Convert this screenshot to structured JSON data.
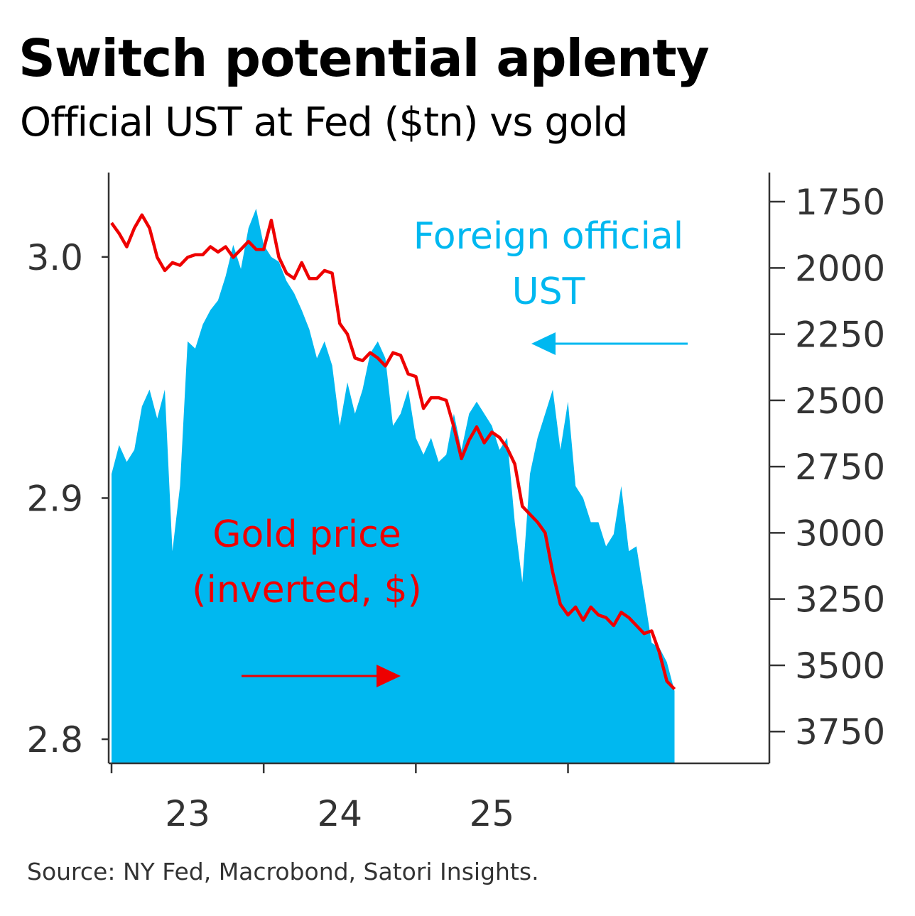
{
  "chart_data": {
    "type": "area+line",
    "title": "Switch potential aplenty",
    "subtitle": "Official UST at Fed ($tn) vs gold",
    "source": "Source: NY Fed, Macrobond, Satori Insights.",
    "x_axis": {
      "ticks": [
        "23",
        "24",
        "25"
      ],
      "range": [
        2022.0,
        2025.95
      ]
    },
    "y_left": {
      "ticks": [
        "3.0",
        "2.9",
        "2.8"
      ],
      "tick_values": [
        3.0,
        2.9,
        2.8
      ],
      "range": [
        2.79,
        3.035
      ]
    },
    "y_right": {
      "inverted": true,
      "ticks": [
        "1750",
        "2000",
        "2250",
        "2500",
        "2750",
        "3000",
        "3250",
        "3500",
        "3750"
      ],
      "tick_values": [
        1750,
        2000,
        2250,
        2500,
        2750,
        3000,
        3250,
        3500,
        3750
      ],
      "range": [
        1640,
        3870
      ]
    },
    "annotations": {
      "ust_line1": "Foreign official",
      "ust_line2": "UST",
      "gold_line1": "Gold price",
      "gold_line2": "(inverted, $)"
    },
    "colors": {
      "ust": "#00b8f0",
      "gold": "#ee0000",
      "axis": "#333333"
    },
    "series": [
      {
        "name": "Foreign official UST",
        "axis": "left",
        "kind": "area",
        "x": [
          2022.0,
          2022.05,
          2022.1,
          2022.15,
          2022.2,
          2022.25,
          2022.3,
          2022.35,
          2022.4,
          2022.45,
          2022.5,
          2022.55,
          2022.6,
          2022.65,
          2022.7,
          2022.75,
          2022.8,
          2022.85,
          2022.9,
          2022.95,
          2023.0,
          2023.05,
          2023.1,
          2023.15,
          2023.2,
          2023.25,
          2023.3,
          2023.35,
          2023.4,
          2023.45,
          2023.5,
          2023.55,
          2023.6,
          2023.65,
          2023.7,
          2023.75,
          2023.8,
          2023.85,
          2023.9,
          2023.95,
          2024.0,
          2024.05,
          2024.1,
          2024.15,
          2024.2,
          2024.25,
          2024.3,
          2024.35,
          2024.4,
          2024.45,
          2024.5,
          2024.55,
          2024.6,
          2024.65,
          2024.7,
          2024.75,
          2024.8,
          2024.85,
          2024.9,
          2024.95,
          2025.0,
          2025.05,
          2025.1,
          2025.15,
          2025.2,
          2025.25,
          2025.3,
          2025.35,
          2025.4,
          2025.45,
          2025.5,
          2025.55,
          2025.6,
          2025.65,
          2025.7
        ],
        "values": [
          2.91,
          2.922,
          2.915,
          2.92,
          2.938,
          2.945,
          2.933,
          2.945,
          2.878,
          2.905,
          2.965,
          2.962,
          2.972,
          2.978,
          2.982,
          2.992,
          3.005,
          2.995,
          3.012,
          3.02,
          3.005,
          3.0,
          2.998,
          2.99,
          2.985,
          2.978,
          2.97,
          2.958,
          2.965,
          2.955,
          2.93,
          2.948,
          2.935,
          2.945,
          2.96,
          2.965,
          2.958,
          2.93,
          2.935,
          2.945,
          2.925,
          2.918,
          2.925,
          2.915,
          2.918,
          2.935,
          2.92,
          2.935,
          2.94,
          2.935,
          2.93,
          2.92,
          2.925,
          2.89,
          2.865,
          2.91,
          2.925,
          2.935,
          2.945,
          2.92,
          2.94,
          2.905,
          2.9,
          2.89,
          2.89,
          2.88,
          2.885,
          2.905,
          2.878,
          2.88,
          2.86,
          2.84,
          2.838,
          2.832,
          2.82
        ]
      },
      {
        "name": "Gold price (inverted, $)",
        "axis": "right",
        "kind": "line",
        "x": [
          2022.0,
          2022.05,
          2022.1,
          2022.15,
          2022.2,
          2022.25,
          2022.3,
          2022.35,
          2022.4,
          2022.45,
          2022.5,
          2022.55,
          2022.6,
          2022.65,
          2022.7,
          2022.75,
          2022.8,
          2022.85,
          2022.9,
          2022.95,
          2023.0,
          2023.05,
          2023.1,
          2023.15,
          2023.2,
          2023.25,
          2023.3,
          2023.35,
          2023.4,
          2023.45,
          2023.5,
          2023.55,
          2023.6,
          2023.65,
          2023.7,
          2023.75,
          2023.8,
          2023.85,
          2023.9,
          2023.95,
          2024.0,
          2024.05,
          2024.1,
          2024.15,
          2024.2,
          2024.25,
          2024.3,
          2024.35,
          2024.4,
          2024.45,
          2024.5,
          2024.55,
          2024.6,
          2024.65,
          2024.7,
          2024.75,
          2024.8,
          2024.85,
          2024.9,
          2024.95,
          2025.0,
          2025.05,
          2025.1,
          2025.15,
          2025.2,
          2025.25,
          2025.3,
          2025.35,
          2025.4,
          2025.45,
          2025.5,
          2025.55,
          2025.6,
          2025.65,
          2025.7
        ],
        "values": [
          1830,
          1870,
          1920,
          1850,
          1800,
          1850,
          1960,
          2010,
          1980,
          1990,
          1960,
          1950,
          1950,
          1920,
          1940,
          1920,
          1960,
          1930,
          1900,
          1930,
          1930,
          1820,
          1960,
          2020,
          2040,
          1980,
          2040,
          2040,
          2010,
          2020,
          2210,
          2250,
          2340,
          2350,
          2320,
          2340,
          2370,
          2320,
          2330,
          2400,
          2410,
          2530,
          2490,
          2490,
          2500,
          2600,
          2720,
          2650,
          2600,
          2660,
          2620,
          2640,
          2680,
          2740,
          2900,
          2930,
          2960,
          3000,
          3150,
          3270,
          3310,
          3280,
          3330,
          3280,
          3310,
          3320,
          3350,
          3300,
          3320,
          3350,
          3380,
          3370,
          3450,
          3560,
          3590
        ]
      }
    ]
  }
}
